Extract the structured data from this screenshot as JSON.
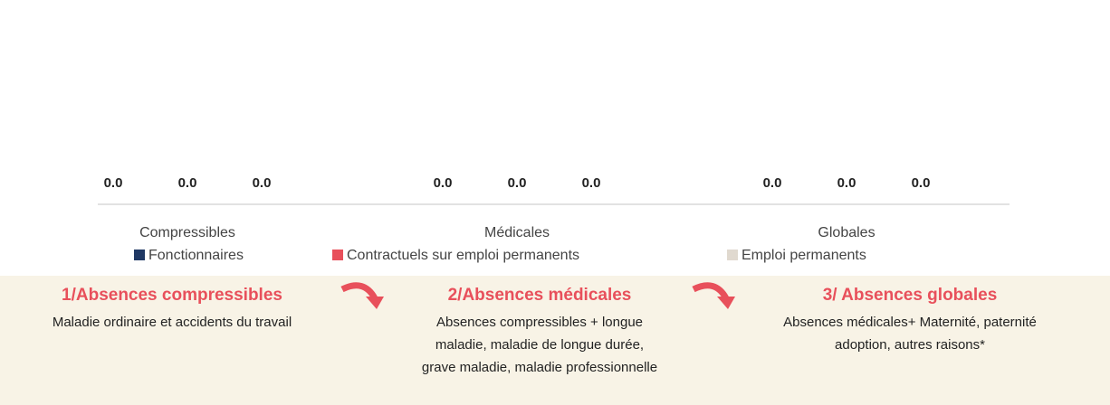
{
  "chart_data": {
    "type": "bar",
    "categories": [
      "Compressibles",
      "Médicales",
      "Globales"
    ],
    "series": [
      {
        "name": "Fonctionnaires",
        "color": "#1f3864",
        "values": [
          0,
          0,
          0
        ],
        "value_labels": [
          "0.0",
          "0.0",
          "0.0"
        ]
      },
      {
        "name": "Contractuels sur emploi permanents",
        "color": "#e8505b",
        "values": [
          0,
          0,
          0
        ],
        "value_labels": [
          "0.0",
          "0.0",
          "0.0"
        ]
      },
      {
        "name": "Emploi permanents",
        "color": "#e0d9cf",
        "values": [
          0,
          0,
          0
        ],
        "value_labels": [
          "0.0",
          "0.0",
          "0.0"
        ]
      }
    ]
  },
  "panel": {
    "steps": [
      {
        "title": "1/Absences compressibles",
        "lines": [
          "Maladie ordinaire et accidents du travail"
        ]
      },
      {
        "title": "2/Absences médicales",
        "lines": [
          "Absences compressibles + longue",
          "maladie, maladie de longue durée,",
          "grave maladie, maladie professionnelle"
        ]
      },
      {
        "title": "3/ Absences globales",
        "lines": [
          "Absences médicales+ Maternité, paternité",
          "adoption, autres raisons*"
        ]
      }
    ]
  }
}
